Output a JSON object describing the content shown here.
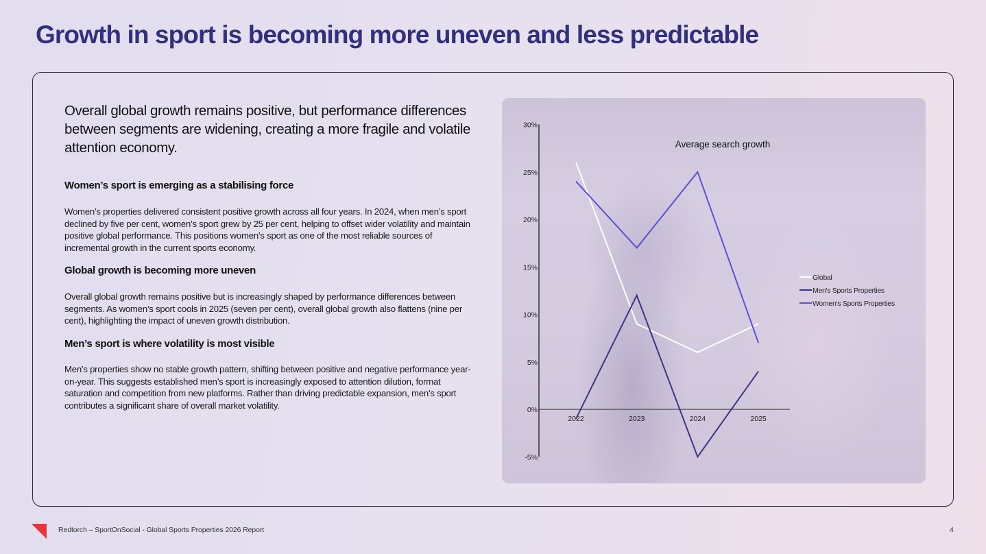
{
  "page": {
    "title": "Growth in sport is becoming more uneven and less predictable",
    "lead": "Overall global growth remains positive, but performance differences between segments are widening, creating a more fragile and volatile attention economy.",
    "sections": [
      {
        "heading": "Women’s sport is emerging as a stabilising force",
        "body": "Women’s properties delivered consistent positive growth across all four years. In 2024, when men’s sport declined by five per cent, women’s sport grew by 25 per cent, helping to offset wider volatility and maintain positive global performance. This positions women’s sport as one of the most reliable sources of incremental growth in the current sports economy."
      },
      {
        "heading": "Global growth is becoming more uneven",
        "body": "Overall global growth remains positive but is increasingly shaped by performance differences between segments. As women’s sport cools in 2025 (seven per cent), overall global growth also flattens (nine per cent), highlighting the impact of uneven growth distribution."
      },
      {
        "heading": "Men’s sport is where volatility is most visible",
        "body": "Men’s properties show no stable growth pattern, shifting between positive and negative performance year-on-year. This suggests established men’s sport is increasingly exposed to attention dilution, format saturation and competition from new platforms. Rather than driving predictable expansion, men’s sport contributes a significant share of overall market volatility."
      }
    ],
    "footer": "Redtorch – SportOnSocial - Global Sports Properties 2026 Report",
    "page_number": "4",
    "colors": {
      "title": "#32307a",
      "logo": "#e8343a"
    }
  },
  "chart_data": {
    "type": "line",
    "title": "Average search growth",
    "xlabel": "",
    "ylabel": "",
    "categories": [
      "2022",
      "2023",
      "2024",
      "2025"
    ],
    "ylim": [
      -5,
      30
    ],
    "yticks": [
      -5,
      0,
      5,
      10,
      15,
      20,
      25,
      30
    ],
    "ytick_labels": [
      "-5%",
      "0%",
      "5%",
      "10%",
      "15%",
      "20%",
      "25%",
      "30%"
    ],
    "grid": false,
    "legend_position": "right",
    "series": [
      {
        "name": "Global",
        "values": [
          26,
          9,
          6,
          9
        ],
        "color": "#ffffff"
      },
      {
        "name": "Men's Sports Properties",
        "values": [
          -1,
          12,
          -5,
          4
        ],
        "color": "#3a3585"
      },
      {
        "name": "Women's Sports Properties",
        "values": [
          24,
          17,
          25,
          7
        ],
        "color": "#5a52d0"
      }
    ]
  }
}
